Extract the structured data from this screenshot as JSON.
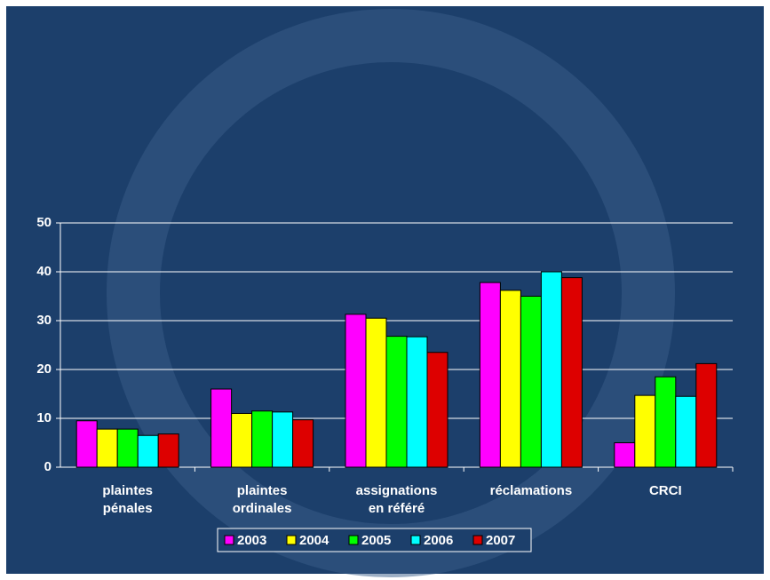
{
  "chart_data": {
    "type": "bar",
    "categories": [
      "plaintes\npénales",
      "plaintes\nordinales",
      "assignations\nen référé",
      "réclamations",
      "CRCI"
    ],
    "series": [
      {
        "name": "2003",
        "color": "#ff00ff",
        "values": [
          9.5,
          16,
          31.3,
          37.8,
          5
        ]
      },
      {
        "name": "2004",
        "color": "#ffff00",
        "values": [
          7.8,
          11,
          30.5,
          36.2,
          14.7
        ]
      },
      {
        "name": "2005",
        "color": "#00ff00",
        "values": [
          7.8,
          11.5,
          26.8,
          35,
          18.5
        ]
      },
      {
        "name": "2006",
        "color": "#00ffff",
        "values": [
          6.5,
          11.3,
          26.7,
          40,
          14.5
        ]
      },
      {
        "name": "2007",
        "color": "#dd0000",
        "values": [
          6.8,
          9.7,
          23.5,
          38.8,
          21.2
        ]
      }
    ],
    "ylim": [
      0,
      50
    ],
    "yticks": [
      0,
      10,
      20,
      30,
      40,
      50
    ],
    "grid": true,
    "legend": "bottom"
  }
}
